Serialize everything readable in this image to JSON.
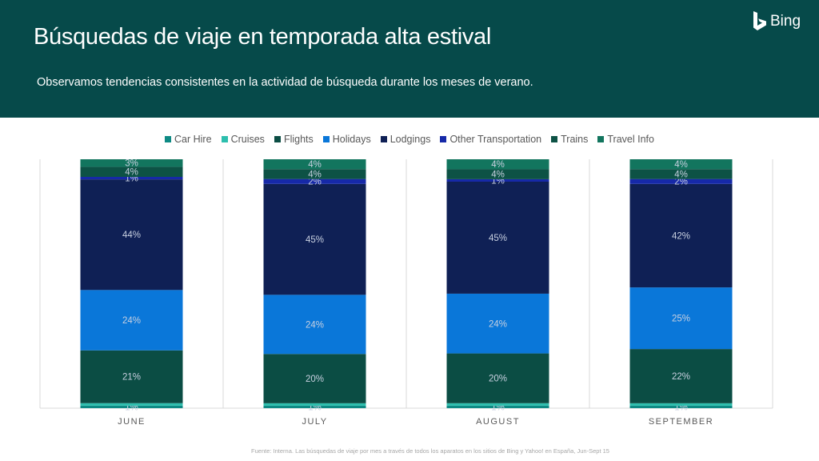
{
  "header": {
    "title": "Búsquedas de viaje en temporada alta estival",
    "subtitle": "Observamos tendencias consistentes en la actividad de búsqueda durante los meses de verano.",
    "logo_text": "Bing"
  },
  "footer": {
    "source": "Fuente: Interna. Las búsquedas de viaje por mes a través de todos los aparatos en los sitios de Bing y Yahoo! en España, Jun-Sept 15"
  },
  "chart_data": {
    "type": "bar",
    "stacked": true,
    "percent_stacked": true,
    "categories": [
      "JUNE",
      "JULY",
      "AUGUST",
      "SEPTEMBER"
    ],
    "series": [
      {
        "name": "Car Hire",
        "color": "#0e8a84",
        "values": [
          1,
          1,
          1,
          1
        ],
        "labels": [
          "1%",
          "1%",
          "1%",
          "1%"
        ]
      },
      {
        "name": "Cruises",
        "color": "#2dbfae",
        "values": [
          1,
          1,
          1,
          1
        ],
        "labels": [
          "",
          "",
          "",
          ""
        ]
      },
      {
        "name": "Flights",
        "color": "#0b4d44",
        "values": [
          21,
          20,
          20,
          22
        ],
        "labels": [
          "21%",
          "20%",
          "20%",
          "22%"
        ]
      },
      {
        "name": "Holidays",
        "color": "#0a77d9",
        "values": [
          24,
          24,
          24,
          25
        ],
        "labels": [
          "24%",
          "24%",
          "24%",
          "25%"
        ]
      },
      {
        "name": "Lodgings",
        "color": "#0f2055",
        "values": [
          44,
          45,
          45,
          42
        ],
        "labels": [
          "44%",
          "45%",
          "45%",
          "42%"
        ]
      },
      {
        "name": "Other Transportation",
        "color": "#1629a8",
        "values": [
          1,
          2,
          1,
          2
        ],
        "labels": [
          "1%",
          "2%",
          "1%",
          "2%"
        ]
      },
      {
        "name": "Trains",
        "color": "#0d5245",
        "values": [
          4,
          4,
          4,
          4
        ],
        "labels": [
          "4%",
          "4%",
          "4%",
          "4%"
        ]
      },
      {
        "name": "Travel Info",
        "color": "#12755e",
        "values": [
          3,
          4,
          4,
          4
        ],
        "labels": [
          "3%",
          "4%",
          "4%",
          "4%"
        ]
      }
    ],
    "legend_position": "top",
    "grid": false
  }
}
